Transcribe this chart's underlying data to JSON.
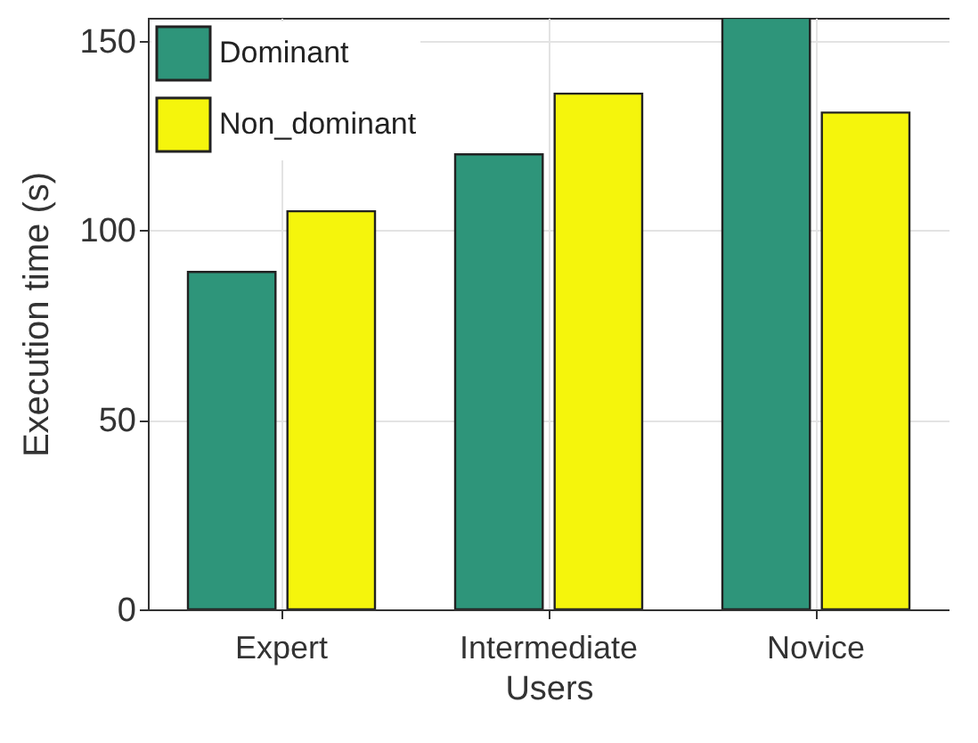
{
  "chart_data": {
    "type": "bar",
    "xlabel": "Users",
    "ylabel": "Execution time (s)",
    "categories": [
      "Expert",
      "Intermediate",
      "Novice"
    ],
    "series": [
      {
        "name": "Dominant",
        "color": "#2e957a",
        "values": [
          89,
          120,
          156
        ]
      },
      {
        "name": "Non_dominant",
        "color": "#f5f50c",
        "values": [
          105,
          136,
          131
        ]
      }
    ],
    "ylim": [
      0,
      156
    ],
    "yticks": [
      0,
      50,
      100,
      150
    ],
    "grid": true,
    "legend": "top left"
  }
}
